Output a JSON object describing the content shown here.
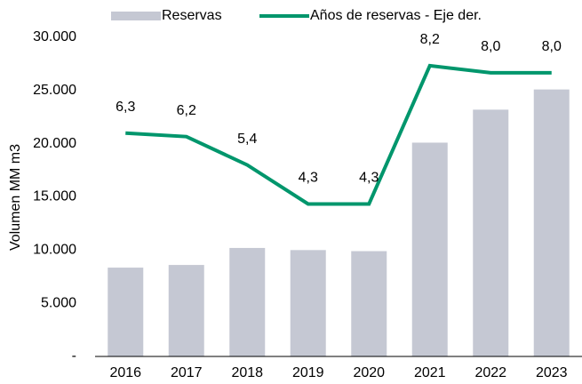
{
  "chart_data": {
    "type": "bar_line",
    "y_label": "Volumen MM m3",
    "categories": [
      "2016",
      "2017",
      "2018",
      "2019",
      "2020",
      "2021",
      "2022",
      "2023"
    ],
    "series": [
      {
        "name": "Reservas",
        "type": "bar",
        "color": "#c5c8d3",
        "values": [
          8350,
          8600,
          10200,
          10000,
          9900,
          20100,
          23200,
          25100
        ]
      },
      {
        "name": "Años de reservas - Eje der.",
        "type": "line",
        "axis": "y2",
        "color": "#00966c",
        "values": [
          6.3,
          6.2,
          5.4,
          4.3,
          4.3,
          8.2,
          8.0,
          8.0
        ],
        "value_labels": [
          "6,3",
          "6,2",
          "5,4",
          "4,3",
          "4,3",
          "8,2",
          "8,0",
          "8,0"
        ]
      }
    ],
    "ylim": [
      0,
      30000
    ],
    "yticks": [
      {
        "value": 0,
        "label": "-"
      },
      {
        "value": 5000,
        "label": "5.000"
      },
      {
        "value": 10000,
        "label": "10.000"
      },
      {
        "value": 15000,
        "label": "15.000"
      },
      {
        "value": 20000,
        "label": "20.000"
      },
      {
        "value": 25000,
        "label": "25.000"
      },
      {
        "value": 30000,
        "label": "30.000"
      }
    ],
    "y2lim": [
      0,
      9
    ],
    "legend": "top"
  }
}
